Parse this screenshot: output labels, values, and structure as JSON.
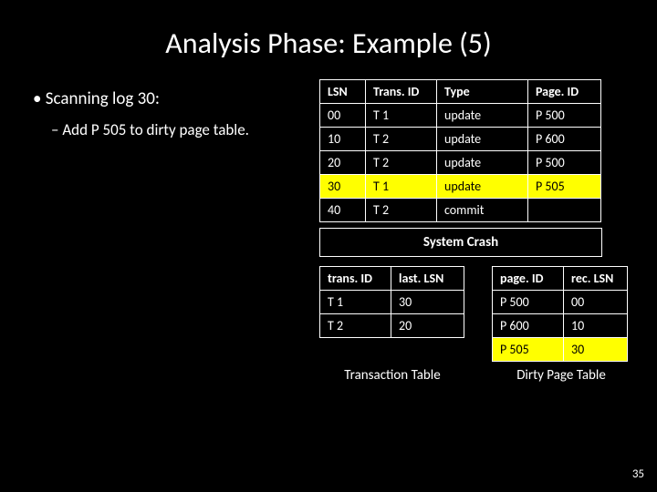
{
  "title": "Analysis Phase: Example (5)",
  "bullet_main": "Scanning log 30:",
  "bullet_sub": "Add P 505 to dirty page table.",
  "log_table": {
    "headers": [
      "LSN",
      "Trans. ID",
      "Type",
      "Page. ID"
    ],
    "rows": [
      {
        "cells": [
          "00",
          "T 1",
          "update",
          "P 500"
        ],
        "highlight": false
      },
      {
        "cells": [
          "10",
          "T 2",
          "update",
          "P 600"
        ],
        "highlight": false
      },
      {
        "cells": [
          "20",
          "T 2",
          "update",
          "P 500"
        ],
        "highlight": false
      },
      {
        "cells": [
          "30",
          "T 1",
          "update",
          "P 505"
        ],
        "highlight": true
      },
      {
        "cells": [
          "40",
          "T 2",
          "commit",
          ""
        ],
        "highlight": false
      }
    ]
  },
  "system_crash": "System Crash",
  "trans_table": {
    "headers": [
      "trans. ID",
      "last. LSN"
    ],
    "rows": [
      [
        "T 1",
        "30"
      ],
      [
        "T 2",
        "20"
      ]
    ],
    "caption": "Transaction Table"
  },
  "dirty_table": {
    "headers": [
      "page. ID",
      "rec. LSN"
    ],
    "rows": [
      {
        "cells": [
          "P 500",
          "00"
        ],
        "highlight": false
      },
      {
        "cells": [
          "P 600",
          "10"
        ],
        "highlight": false
      },
      {
        "cells": [
          "P 505",
          "30"
        ],
        "highlight": true
      }
    ],
    "caption": "Dirty Page Table"
  },
  "page_number": "35"
}
